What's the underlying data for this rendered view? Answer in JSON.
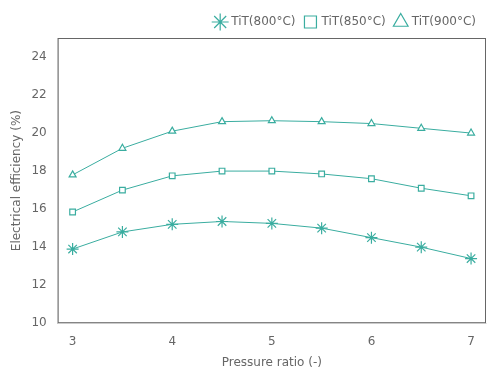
{
  "chart_data": {
    "type": "line",
    "x": [
      3,
      3.5,
      4,
      4.5,
      5,
      5.5,
      6,
      6.5,
      7
    ],
    "series": [
      {
        "name": "TiT(800°C)",
        "color": "#3aada0",
        "marker": "star",
        "values": [
          13.9,
          14.8,
          15.2,
          15.35,
          15.25,
          15.0,
          14.5,
          14.0,
          13.4
        ]
      },
      {
        "name": "TiT(850°C)",
        "color": "#3aada0",
        "marker": "square",
        "values": [
          15.85,
          17.0,
          17.75,
          18.0,
          18.0,
          17.85,
          17.6,
          17.1,
          16.7
        ]
      },
      {
        "name": "TiT(900°C)",
        "color": "#3aada0",
        "marker": "triangle",
        "values": [
          17.8,
          19.2,
          20.1,
          20.6,
          20.65,
          20.6,
          20.5,
          20.25,
          20.0
        ]
      }
    ],
    "xlabel": "Pressure ratio (-)",
    "ylabel": "Electrical efficiency (%)",
    "xlim": [
      2.85,
      7.15
    ],
    "ylim": [
      10,
      25
    ],
    "xticks": [
      3,
      4,
      5,
      6,
      7
    ],
    "yticks": [
      10,
      12,
      14,
      16,
      18,
      20,
      22,
      24
    ],
    "legend": "upper right",
    "grid": false
  }
}
